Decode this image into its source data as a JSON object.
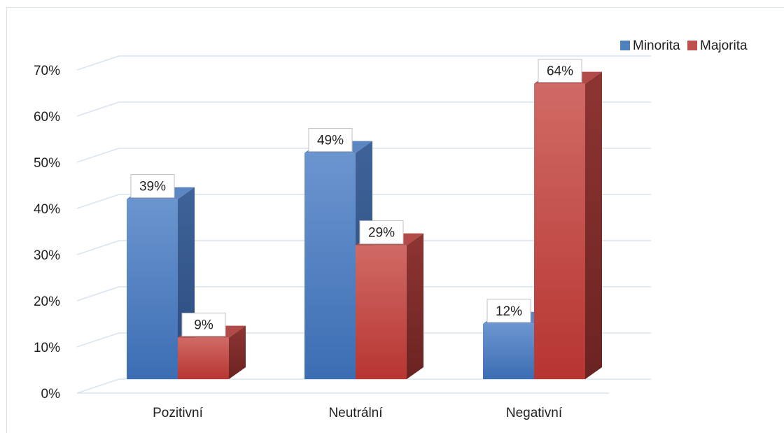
{
  "chart_data": {
    "type": "bar",
    "categories": [
      "Pozitivní",
      "Neutrální",
      "Negativní"
    ],
    "series": [
      {
        "name": "Minorita",
        "values": [
          39,
          49,
          12
        ],
        "labels": [
          "39%",
          "49%",
          "12%"
        ]
      },
      {
        "name": "Majorita",
        "values": [
          9,
          29,
          64
        ],
        "labels": [
          "9%",
          "29%",
          "64%"
        ]
      }
    ],
    "y_ticks": [
      "0%",
      "10%",
      "20%",
      "30%",
      "40%",
      "50%",
      "60%",
      "70%"
    ],
    "ylim": [
      0,
      70
    ],
    "grid": true,
    "legend_position": "top-right",
    "colors": {
      "Minorita": "#4f81bd",
      "Majorita": "#c0504d",
      "grid": "#d9e3ef"
    }
  }
}
